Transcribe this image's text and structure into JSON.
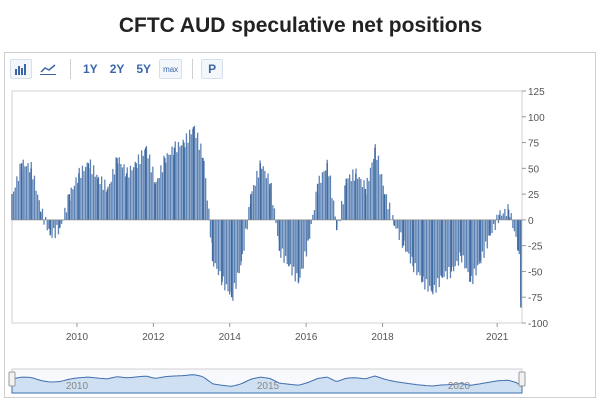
{
  "title": "CFTC AUD speculative net positions",
  "toolbar": {
    "chart_type_icons": [
      "bar-chart-icon",
      "line-chart-icon"
    ],
    "ranges": [
      "1Y",
      "2Y",
      "5Y",
      "max"
    ],
    "print_label": "P"
  },
  "colors": {
    "bar": "#5b82b5",
    "bar_stroke": "#3f689f",
    "navigator_fill": "#cfe0f3",
    "navigator_line": "#3f6fae",
    "grid": "#e6e6e6",
    "axis_text": "#555555"
  },
  "chart_data": {
    "type": "bar",
    "title": "CFTC AUD speculative net positions",
    "xlabel": "",
    "ylabel": "",
    "ylim": [
      -100,
      125
    ],
    "yticks": [
      125,
      100,
      75,
      50,
      25,
      0,
      -25,
      -50,
      -75,
      -100
    ],
    "xlim": [
      2008.3,
      2021.65
    ],
    "xticks": [
      "2010",
      "2012",
      "2014",
      "2016",
      "2018",
      "2021"
    ],
    "navigator_labels": [
      "2010",
      "2015",
      "2020"
    ],
    "grid": false,
    "legend": "none",
    "x": [
      2008.3,
      2008.55,
      2008.8,
      2009.05,
      2009.3,
      2009.55,
      2009.8,
      2010.05,
      2010.3,
      2010.55,
      2010.8,
      2011.05,
      2011.3,
      2011.55,
      2011.8,
      2012.05,
      2012.3,
      2012.55,
      2012.8,
      2013.05,
      2013.3,
      2013.55,
      2013.8,
      2014.05,
      2014.3,
      2014.55,
      2014.8,
      2015.05,
      2015.3,
      2015.55,
      2015.8,
      2016.05,
      2016.3,
      2016.55,
      2016.8,
      2017.05,
      2017.3,
      2017.55,
      2017.8,
      2018.05,
      2018.3,
      2018.55,
      2018.8,
      2019.05,
      2019.3,
      2019.55,
      2019.8,
      2020.05,
      2020.3,
      2020.55,
      2020.8,
      2021.05,
      2021.3,
      2021.55,
      2021.62
    ],
    "values": [
      25,
      55,
      50,
      8,
      -15,
      -8,
      25,
      45,
      55,
      40,
      30,
      60,
      45,
      55,
      70,
      35,
      60,
      70,
      75,
      90,
      60,
      -40,
      -60,
      -75,
      -40,
      25,
      55,
      35,
      -30,
      -45,
      -60,
      -20,
      35,
      55,
      -10,
      40,
      45,
      30,
      70,
      25,
      -5,
      -25,
      -45,
      -60,
      -70,
      -55,
      -50,
      -35,
      -60,
      -40,
      -15,
      5,
      10,
      -30,
      -85
    ]
  }
}
